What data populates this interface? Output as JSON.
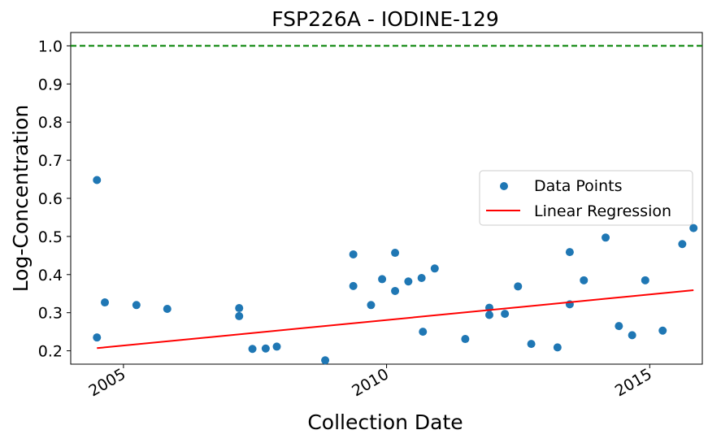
{
  "chart_data": {
    "type": "scatter",
    "title": "FSP226A - IODINE-129",
    "xlabel": "Collection Date",
    "ylabel": "Log-Concentration",
    "x_type": "date",
    "xlim": [
      "2004-01-01",
      "2016-01-01"
    ],
    "ylim": [
      0.165,
      1.035
    ],
    "x_ticks": [
      {
        "date": "2005-01-01",
        "label": "2005"
      },
      {
        "date": "2010-01-01",
        "label": "2010"
      },
      {
        "date": "2015-01-01",
        "label": "2015"
      }
    ],
    "y_ticks": [
      {
        "value": 0.2,
        "label": "0.2"
      },
      {
        "value": 0.3,
        "label": "0.3"
      },
      {
        "value": 0.4,
        "label": "0.4"
      },
      {
        "value": 0.5,
        "label": "0.5"
      },
      {
        "value": 0.6,
        "label": "0.6"
      },
      {
        "value": 0.7,
        "label": "0.7"
      },
      {
        "value": 0.8,
        "label": "0.8"
      },
      {
        "value": 0.9,
        "label": "0.9"
      },
      {
        "value": 1.0,
        "label": "1.0"
      }
    ],
    "grid": false,
    "legend_position": "center-right",
    "reference_line": {
      "y": 1.0,
      "style": "dashed",
      "color": "#008000"
    },
    "series": [
      {
        "name": "Data Points",
        "kind": "scatter",
        "color": "#1f77b4",
        "points": [
          {
            "x": "2004-07-01",
            "y": 0.648
          },
          {
            "x": "2004-07-01",
            "y": 0.235
          },
          {
            "x": "2004-08-25",
            "y": 0.327
          },
          {
            "x": "2005-04-01",
            "y": 0.32
          },
          {
            "x": "2005-11-01",
            "y": 0.31
          },
          {
            "x": "2007-03-15",
            "y": 0.312
          },
          {
            "x": "2007-03-15",
            "y": 0.291
          },
          {
            "x": "2007-06-15",
            "y": 0.205
          },
          {
            "x": "2007-09-15",
            "y": 0.206
          },
          {
            "x": "2007-12-01",
            "y": 0.211
          },
          {
            "x": "2008-11-01",
            "y": 0.175
          },
          {
            "x": "2009-05-15",
            "y": 0.453
          },
          {
            "x": "2009-05-15",
            "y": 0.37
          },
          {
            "x": "2009-09-15",
            "y": 0.32
          },
          {
            "x": "2009-12-01",
            "y": 0.388
          },
          {
            "x": "2010-03-01",
            "y": 0.457
          },
          {
            "x": "2010-03-01",
            "y": 0.357
          },
          {
            "x": "2010-06-01",
            "y": 0.382
          },
          {
            "x": "2010-09-01",
            "y": 0.391
          },
          {
            "x": "2010-09-10",
            "y": 0.25
          },
          {
            "x": "2010-12-01",
            "y": 0.416
          },
          {
            "x": "2011-07-01",
            "y": 0.231
          },
          {
            "x": "2011-12-15",
            "y": 0.313
          },
          {
            "x": "2011-12-15",
            "y": 0.294
          },
          {
            "x": "2012-04-01",
            "y": 0.297
          },
          {
            "x": "2012-07-01",
            "y": 0.369
          },
          {
            "x": "2012-10-01",
            "y": 0.218
          },
          {
            "x": "2013-04-01",
            "y": 0.209
          },
          {
            "x": "2013-06-25",
            "y": 0.459
          },
          {
            "x": "2013-06-25",
            "y": 0.322
          },
          {
            "x": "2013-10-01",
            "y": 0.385
          },
          {
            "x": "2014-03-01",
            "y": 0.497
          },
          {
            "x": "2014-06-01",
            "y": 0.265
          },
          {
            "x": "2014-09-01",
            "y": 0.241
          },
          {
            "x": "2014-12-01",
            "y": 0.385
          },
          {
            "x": "2015-04-01",
            "y": 0.253
          },
          {
            "x": "2015-08-15",
            "y": 0.48
          },
          {
            "x": "2015-11-01",
            "y": 0.522
          }
        ]
      },
      {
        "name": "Linear Regression",
        "kind": "line",
        "color": "#ff0000",
        "points": [
          {
            "x": "2004-07-01",
            "y": 0.207
          },
          {
            "x": "2015-11-01",
            "y": 0.359
          }
        ]
      }
    ]
  }
}
